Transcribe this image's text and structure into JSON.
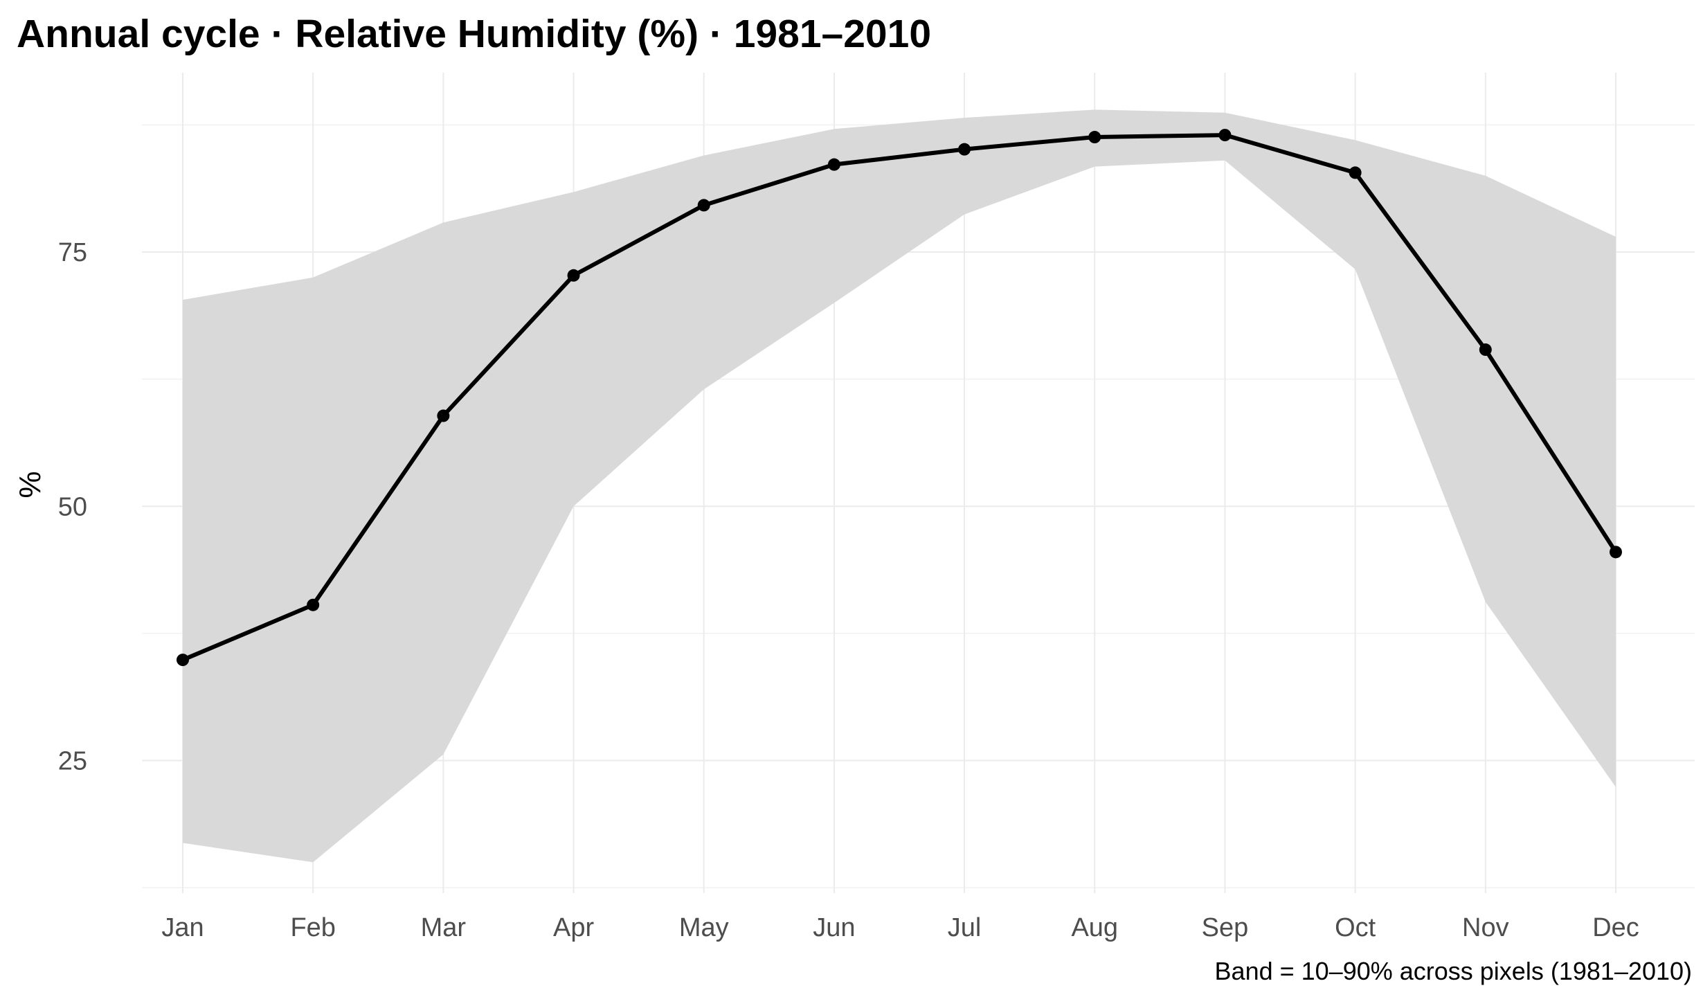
{
  "chart_data": {
    "type": "line",
    "title": "Annual cycle · Relative Humidity (%) · 1981–2010",
    "xlabel": "",
    "ylabel": "%",
    "caption": "Band = 10–90% across pixels (1981–2010)",
    "categories": [
      "Jan",
      "Feb",
      "Mar",
      "Apr",
      "May",
      "Jun",
      "Jul",
      "Aug",
      "Sep",
      "Oct",
      "Nov",
      "Dec"
    ],
    "series": [
      {
        "values": [
          34.9,
          40.3,
          58.9,
          72.7,
          79.6,
          83.6,
          85.1,
          86.3,
          86.5,
          82.8,
          65.4,
          45.5
        ]
      }
    ],
    "band": {
      "lower": [
        16.9,
        15.0,
        25.6,
        50.0,
        61.5,
        70.0,
        78.7,
        83.4,
        84.0,
        73.3,
        40.6,
        22.4
      ],
      "upper": [
        70.3,
        72.5,
        77.9,
        80.9,
        84.5,
        87.1,
        88.2,
        89.0,
        88.7,
        86.0,
        82.5,
        76.5
      ]
    },
    "ylim": [
      11.5,
      92.5
    ],
    "yticks": [
      25,
      50,
      75
    ],
    "grid": true,
    "legend": "none",
    "colors": {
      "line": "#000000",
      "band": "#d9d9d9",
      "grid": "#ebebeb"
    }
  }
}
